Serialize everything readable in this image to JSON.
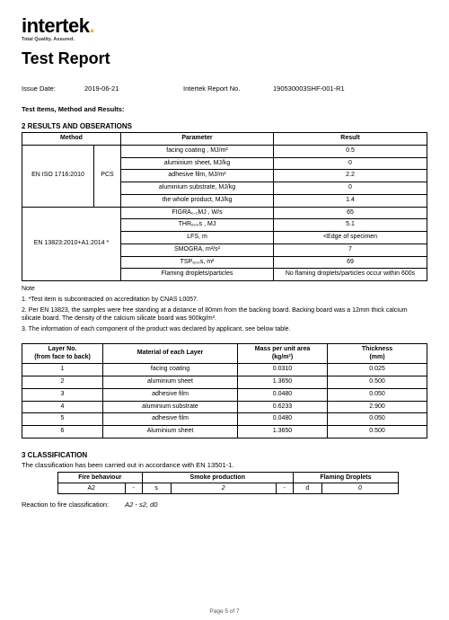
{
  "brand": {
    "name": "intertek",
    "tagline": "Total Quality. Assured."
  },
  "title": "Test Report",
  "meta": {
    "issue_date_label": "Issue Date:",
    "issue_date": "2019-06-21",
    "report_no_label": "Intertek Report No.",
    "report_no": "190530003SHF-001-R1"
  },
  "section_items_label": "Test Items, Method and Results:",
  "results_heading": "2 RESULTS AND OBSERATIONS",
  "results_table": {
    "headers": {
      "method": "Method",
      "parameter": "Parameter",
      "result": "Result"
    },
    "block1": {
      "method": "EN ISO 1716:2010",
      "mid": "PCS",
      "rows": [
        {
          "param": "facing coating , MJ/m²",
          "result": "0.5"
        },
        {
          "param": "aluminium sheet, MJ/kg",
          "result": "0"
        },
        {
          "param": "adhesive film, MJ/m²",
          "result": "2.2"
        },
        {
          "param": "aluminium substrate, MJ/kg",
          "result": "0"
        },
        {
          "param": "the whole product, MJ/kg",
          "result": "1.4"
        }
      ]
    },
    "block2": {
      "method": "EN 13823:2010+A1:2014 *",
      "rows": [
        {
          "param": "FIGRA₀.₂MJ , W/s",
          "result": "65"
        },
        {
          "param": "THR₆₀₀s , MJ",
          "result": "5.1"
        },
        {
          "param": "LFS, m",
          "result": "<Edge of specimen"
        },
        {
          "param": "SMOGRA, m²/s²",
          "result": "7"
        },
        {
          "param": "TSP₆₀₀s, m²",
          "result": "69"
        },
        {
          "param": "Flaming droplets/particles",
          "result": "No flaming droplets/particles occur within 600s"
        }
      ]
    }
  },
  "note_label": "Note",
  "notes": [
    "1. *Test item is subcontracted on accreditation by CNAS L0057.",
    "2. Per EN 13823, the samples were free standing at a distance of 80mm from the backing board. Backing board was a 12mm thick calcium silicate board. The density of the calcium silicate board was 900kg/m³.",
    "3. The information of each component of the product was declared by applicant, see below table."
  ],
  "layer_table": {
    "headers": {
      "layer": "Layer No.\n(from face to back)",
      "material": "Material of each Layer",
      "mass": "Mass per unit area\n(kg/m²)",
      "thickness": "Thickness\n(mm)"
    },
    "rows": [
      {
        "n": "1",
        "mat": "facing coating",
        "mass": "0.0310",
        "th": "0.025"
      },
      {
        "n": "2",
        "mat": "aluminium sheet",
        "mass": "1.3650",
        "th": "0.500"
      },
      {
        "n": "3",
        "mat": "adhesive film",
        "mass": "0.0480",
        "th": "0.050"
      },
      {
        "n": "4",
        "mat": "aluminium substrate",
        "mass": "0.6233",
        "th": "2.900"
      },
      {
        "n": "5",
        "mat": "adhesive film",
        "mass": "0.0480",
        "th": "0.050"
      },
      {
        "n": "6",
        "mat": "Aluminium sheet",
        "mass": "1.3650",
        "th": "0.500"
      }
    ]
  },
  "classification": {
    "heading": "3 CLASSIFICATION",
    "intro": "The classification has been carried out in accordance with EN 13501-1.",
    "headers": {
      "fire": "Fire behaviour",
      "smoke": "Smoke production",
      "flaming": "Flaming Droplets"
    },
    "values": {
      "fire": "A2",
      "dash1": "-",
      "s": "s",
      "sval": "2",
      "dash2": "-",
      "d": "d",
      "dval": "0"
    },
    "reaction_label": "Reaction to fire classification:",
    "reaction_val": "A2 - s2, d0"
  },
  "footer": "Page 5 of 7"
}
